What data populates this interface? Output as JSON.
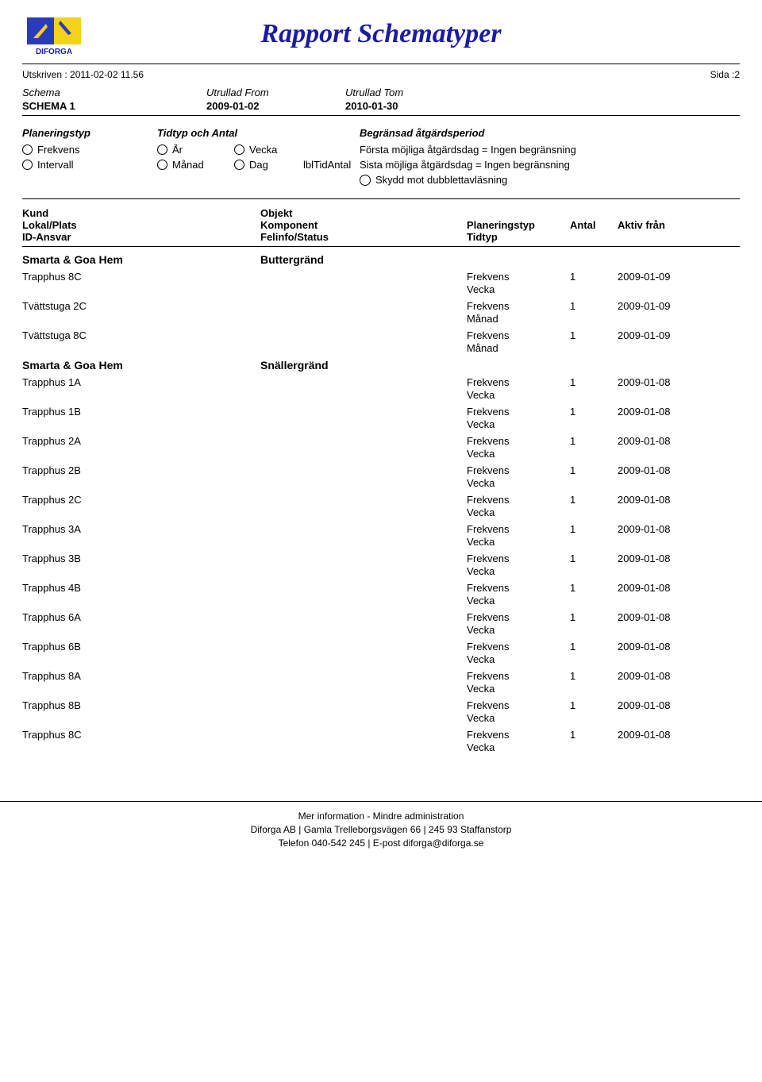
{
  "title": "Rapport Schematyper",
  "printed_label": "Utskriven :",
  "printed_value": "2011-02-02 11.56",
  "page_label": "Sida :",
  "page_value": "2",
  "schema": {
    "col1_label": "Schema",
    "col2_label": "Utrullad From",
    "col3_label": "Utrullad Tom",
    "col1_value": "SCHEMA 1",
    "col2_value": "2009-01-02",
    "col3_value": "2010-01-30"
  },
  "planning": {
    "col1_header": "Planeringstyp",
    "col1_opts": [
      "Frekvens",
      "Intervall"
    ],
    "col2_header": "Tidtyp och Antal",
    "col2_row1": [
      "År",
      "Vecka"
    ],
    "col2_row2": [
      "Månad",
      "Dag"
    ],
    "col2_tail": "lblTidAntal",
    "col3_header": "Begränsad åtgärdsperiod",
    "col3_line1": "Första möjliga åtgärdsdag = Ingen begränsning",
    "col3_line2": "Sista möjliga åtgärdsdag = Ingen begränsning",
    "col3_line3": "Skydd mot dubblettavläsning"
  },
  "table": {
    "hdr": {
      "kund": "Kund",
      "objekt": "Objekt",
      "lokal": "Lokal/Plats",
      "komponent": "Komponent",
      "planeringstyp": "Planeringstyp",
      "antal": "Antal",
      "aktiv": "Aktiv från",
      "idansvar": "ID-Ansvar",
      "felinfo": "Felinfo/Status",
      "tidtyp": "Tidtyp"
    },
    "groups": [
      {
        "kund": "Smarta & Goa Hem",
        "objekt": "Buttergränd",
        "items": [
          {
            "lokal": "Trapphus 8C",
            "plan": "Frekvens",
            "tid": "Vecka",
            "antal": "1",
            "aktiv": "2009-01-09"
          },
          {
            "lokal": "Tvättstuga 2C",
            "plan": "Frekvens",
            "tid": "Månad",
            "antal": "1",
            "aktiv": "2009-01-09"
          },
          {
            "lokal": "Tvättstuga 8C",
            "plan": "Frekvens",
            "tid": "Månad",
            "antal": "1",
            "aktiv": "2009-01-09"
          }
        ]
      },
      {
        "kund": "Smarta & Goa Hem",
        "objekt": "Snällergränd",
        "items": [
          {
            "lokal": "Trapphus 1A",
            "plan": "Frekvens",
            "tid": "Vecka",
            "antal": "1",
            "aktiv": "2009-01-08"
          },
          {
            "lokal": "Trapphus 1B",
            "plan": "Frekvens",
            "tid": "Vecka",
            "antal": "1",
            "aktiv": "2009-01-08"
          },
          {
            "lokal": "Trapphus 2A",
            "plan": "Frekvens",
            "tid": "Vecka",
            "antal": "1",
            "aktiv": "2009-01-08"
          },
          {
            "lokal": "Trapphus 2B",
            "plan": "Frekvens",
            "tid": "Vecka",
            "antal": "1",
            "aktiv": "2009-01-08"
          },
          {
            "lokal": "Trapphus 2C",
            "plan": "Frekvens",
            "tid": "Vecka",
            "antal": "1",
            "aktiv": "2009-01-08"
          },
          {
            "lokal": "Trapphus 3A",
            "plan": "Frekvens",
            "tid": "Vecka",
            "antal": "1",
            "aktiv": "2009-01-08"
          },
          {
            "lokal": "Trapphus 3B",
            "plan": "Frekvens",
            "tid": "Vecka",
            "antal": "1",
            "aktiv": "2009-01-08"
          },
          {
            "lokal": "Trapphus 4B",
            "plan": "Frekvens",
            "tid": "Vecka",
            "antal": "1",
            "aktiv": "2009-01-08"
          },
          {
            "lokal": "Trapphus 6A",
            "plan": "Frekvens",
            "tid": "Vecka",
            "antal": "1",
            "aktiv": "2009-01-08"
          },
          {
            "lokal": "Trapphus 6B",
            "plan": "Frekvens",
            "tid": "Vecka",
            "antal": "1",
            "aktiv": "2009-01-08"
          },
          {
            "lokal": "Trapphus 8A",
            "plan": "Frekvens",
            "tid": "Vecka",
            "antal": "1",
            "aktiv": "2009-01-08"
          },
          {
            "lokal": "Trapphus 8B",
            "plan": "Frekvens",
            "tid": "Vecka",
            "antal": "1",
            "aktiv": "2009-01-08"
          },
          {
            "lokal": "Trapphus 8C",
            "plan": "Frekvens",
            "tid": "Vecka",
            "antal": "1",
            "aktiv": "2009-01-08"
          }
        ]
      }
    ]
  },
  "footer": {
    "line1": "Mer information - Mindre administration",
    "line2": "Diforga AB | Gamla Trelleborgsvägen 66 | 245 93 Staffanstorp",
    "line3": "Telefon 040-542 245 | E-post diforga@diforga.se"
  }
}
